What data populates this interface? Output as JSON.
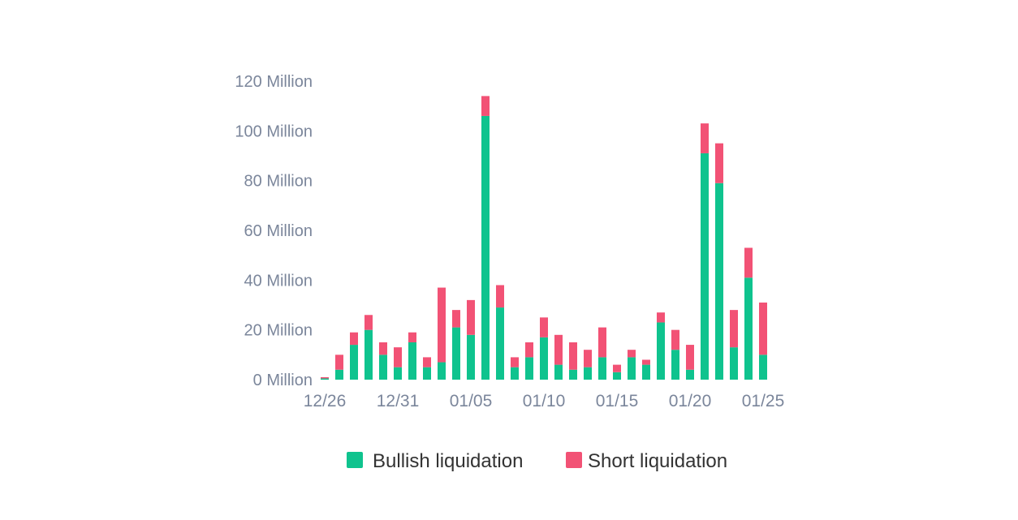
{
  "chart_data": {
    "type": "bar",
    "stacked": true,
    "categories": [
      "12/26",
      "12/27",
      "12/28",
      "12/29",
      "12/30",
      "12/31",
      "01/01",
      "01/02",
      "01/03",
      "01/04",
      "01/05",
      "01/06",
      "01/07",
      "01/08",
      "01/09",
      "01/10",
      "01/11",
      "01/12",
      "01/13",
      "01/14",
      "01/15",
      "01/16",
      "01/17",
      "01/18",
      "01/19",
      "01/20",
      "01/21",
      "01/22",
      "01/23",
      "01/24",
      "01/25"
    ],
    "x_tick_labels": [
      "12/26",
      "12/31",
      "01/05",
      "01/10",
      "01/15",
      "01/20",
      "01/25"
    ],
    "y_tick_labels": [
      "0 Million",
      "20 Million",
      "40 Million",
      "60 Million",
      "80 Million",
      "100 Million",
      "120 Million"
    ],
    "ylim": [
      0,
      120
    ],
    "grid": false,
    "legend_position": "bottom",
    "series": [
      {
        "name": "Bullish liquidation",
        "color": "#0fc38e",
        "values": [
          0.5,
          4,
          14,
          20,
          10,
          5,
          15,
          5,
          7,
          21,
          18,
          106,
          29,
          5,
          9,
          17,
          6,
          4,
          5,
          9,
          3,
          9,
          6,
          23,
          12,
          4,
          91,
          79,
          13,
          41,
          10
        ]
      },
      {
        "name": "Short liquidation",
        "color": "#f25275",
        "values": [
          0.5,
          6,
          5,
          6,
          5,
          8,
          4,
          4,
          30,
          7,
          14,
          8,
          9,
          4,
          6,
          8,
          12,
          11,
          7,
          12,
          3,
          3,
          2,
          4,
          8,
          10,
          12,
          16,
          15,
          12,
          21
        ]
      }
    ]
  }
}
